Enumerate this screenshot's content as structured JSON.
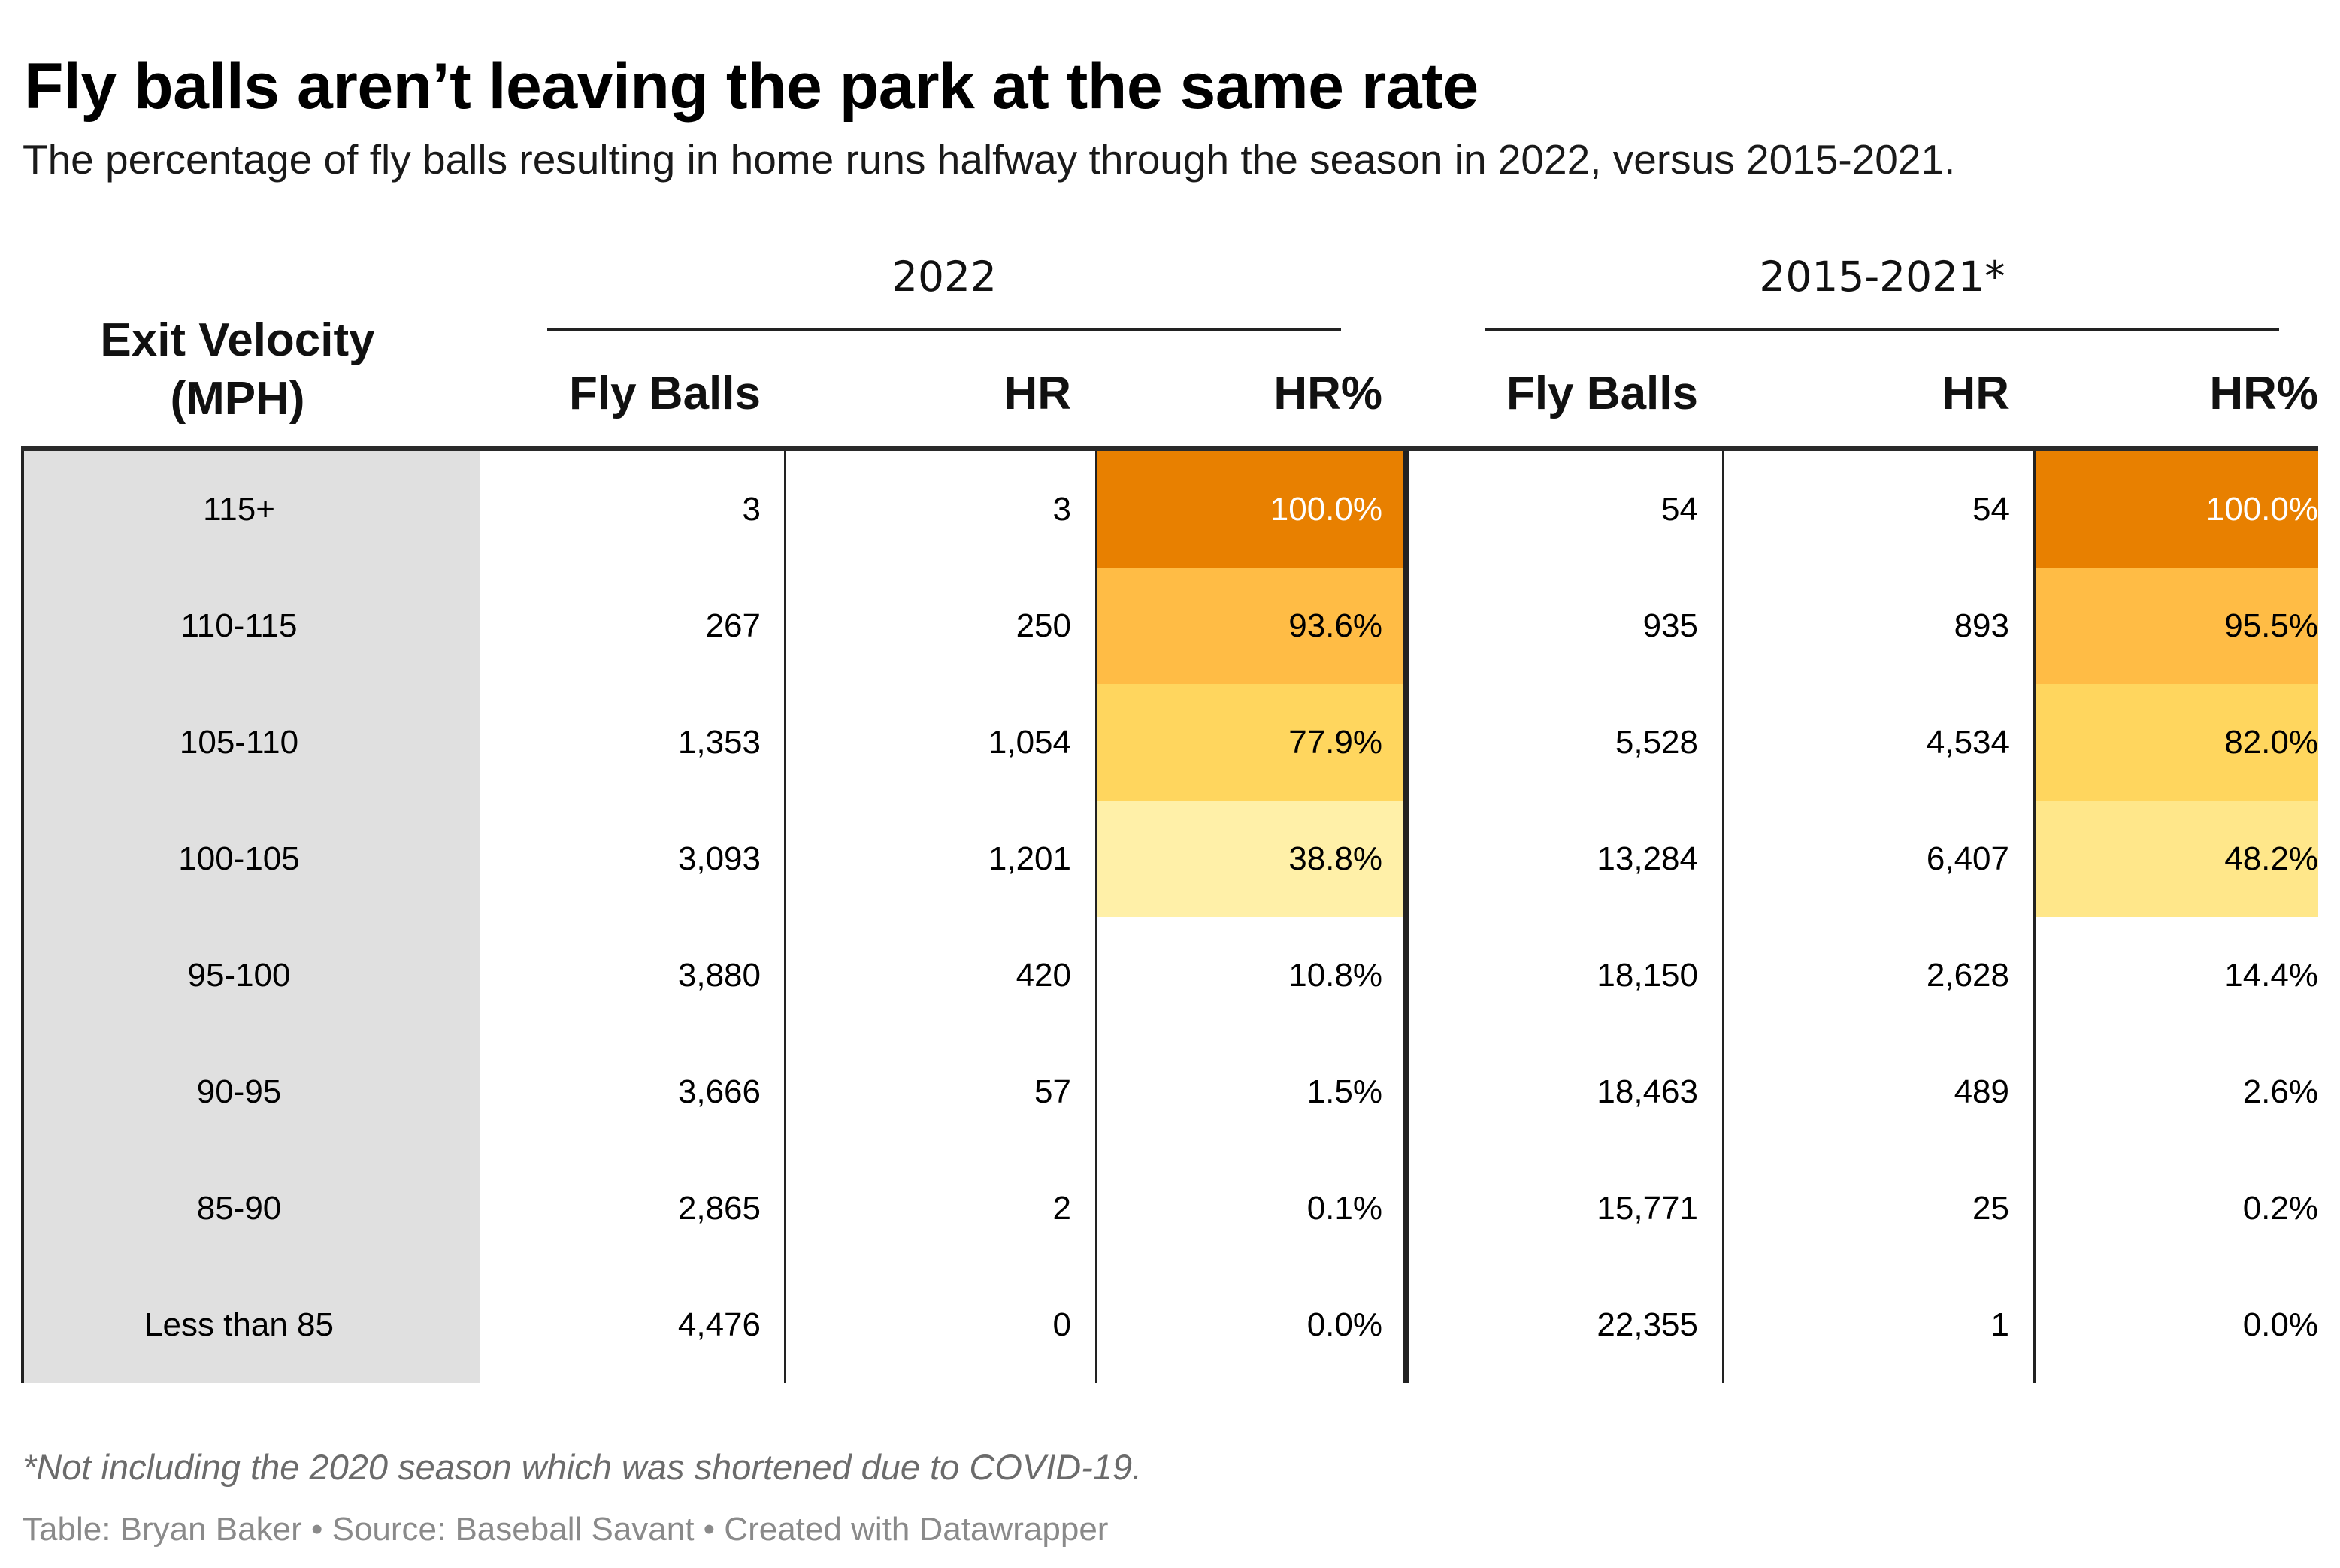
{
  "title": "Fly balls aren’t leaving the park at the same rate",
  "subtitle": "The percentage of fly balls resulting in home runs halfway through the season in 2022, versus 2015-2021.",
  "chart_data": {
    "type": "table",
    "group_headers": [
      "2022",
      "2015-2021*"
    ],
    "columns": [
      "Exit Velocity (MPH)",
      "Fly Balls",
      "HR",
      "HR%",
      "Fly Balls",
      "HR",
      "HR%"
    ],
    "rows": [
      {
        "ev": "115+",
        "fb22": "3",
        "hr22": "3",
        "pct22": "100.0%",
        "fb15": "54",
        "hr15": "54",
        "pct15": "100.0%",
        "v22": 100.0,
        "v15": 100.0
      },
      {
        "ev": "110-115",
        "fb22": "267",
        "hr22": "250",
        "pct22": "93.6%",
        "fb15": "935",
        "hr15": "893",
        "pct15": "95.5%",
        "v22": 93.6,
        "v15": 95.5
      },
      {
        "ev": "105-110",
        "fb22": "1,353",
        "hr22": "1,054",
        "pct22": "77.9%",
        "fb15": "5,528",
        "hr15": "4,534",
        "pct15": "82.0%",
        "v22": 77.9,
        "v15": 82.0
      },
      {
        "ev": "100-105",
        "fb22": "3,093",
        "hr22": "1,201",
        "pct22": "38.8%",
        "fb15": "13,284",
        "hr15": "6,407",
        "pct15": "48.2%",
        "v22": 38.8,
        "v15": 48.2
      },
      {
        "ev": "95-100",
        "fb22": "3,880",
        "hr22": "420",
        "pct22": "10.8%",
        "fb15": "18,150",
        "hr15": "2,628",
        "pct15": "14.4%",
        "v22": 10.8,
        "v15": 14.4
      },
      {
        "ev": "90-95",
        "fb22": "3,666",
        "hr22": "57",
        "pct22": "1.5%",
        "fb15": "18,463",
        "hr15": "489",
        "pct15": "2.6%",
        "v22": 1.5,
        "v15": 2.6
      },
      {
        "ev": "85-90",
        "fb22": "2,865",
        "hr22": "2",
        "pct22": "0.1%",
        "fb15": "15,771",
        "hr15": "25",
        "pct15": "0.2%",
        "v22": 0.1,
        "v15": 0.2
      },
      {
        "ev": "Less than 85",
        "fb22": "4,476",
        "hr22": "0",
        "pct22": "0.0%",
        "fb15": "22,355",
        "hr15": "1",
        "pct15": "0.0%",
        "v22": 0.0,
        "v15": 0.0
      }
    ],
    "heat_colors": [
      "#e88000",
      "#ffbc45",
      "#ffd65e",
      "#fff0a8",
      "#ffe78a"
    ]
  },
  "ev_header": [
    "Exit Velocity",
    "(MPH)"
  ],
  "footnote": "*Not including the 2020 season which was shortened due to COVID-19.",
  "credit": "Table: Bryan Baker • Source: Baseball Savant • Created with Datawrapper"
}
